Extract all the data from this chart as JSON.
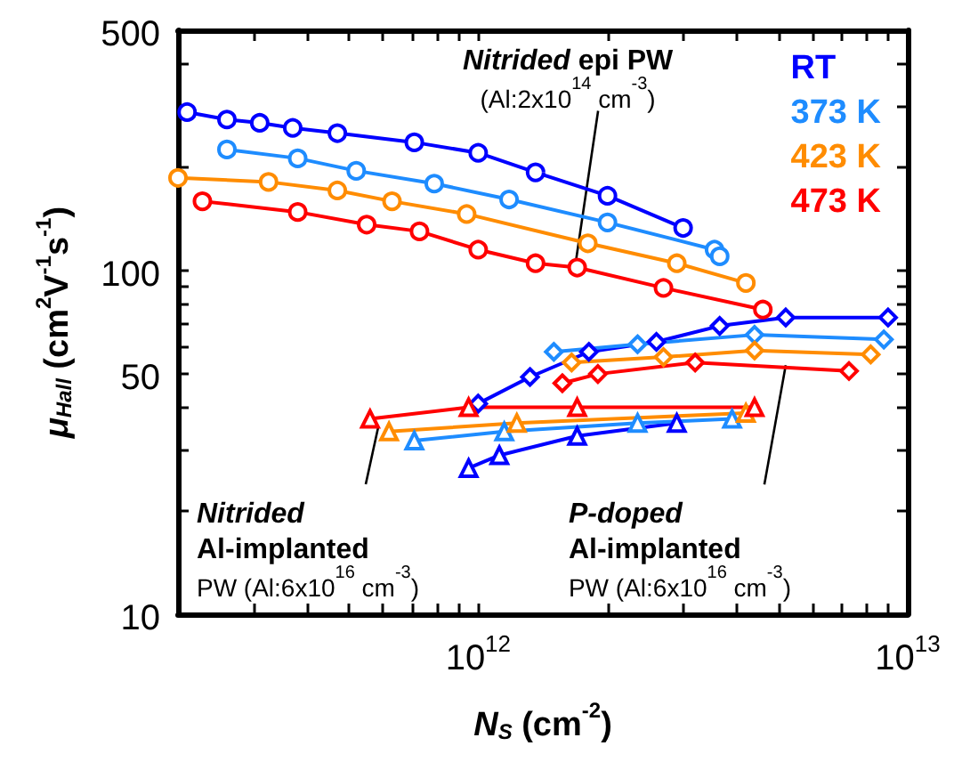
{
  "chart_data": {
    "type": "line",
    "xlabel": "N$_{S}$ (cm$^{-2}$)",
    "ylabel": "μ$_{Hall}$ (cm$^{2}$V$^{-1}$s$^{-1}$)",
    "log": "xy",
    "xlim": [
      200000000000.0,
      10000000000000.0
    ],
    "ylim": [
      10,
      500
    ],
    "xticks": [
      {
        "value": 200000000000.0,
        "label": null
      },
      {
        "value": 300000000000.0,
        "label": null
      },
      {
        "value": 400000000000.0,
        "label": null
      },
      {
        "value": 500000000000.0,
        "label": null
      },
      {
        "value": 600000000000.0,
        "label": null
      },
      {
        "value": 700000000000.0,
        "label": null
      },
      {
        "value": 800000000000.0,
        "label": null
      },
      {
        "value": 900000000000.0,
        "label": null
      },
      {
        "value": 1000000000000.0,
        "label": "10$^{12}$"
      },
      {
        "value": 2000000000000.0,
        "label": null
      },
      {
        "value": 3000000000000.0,
        "label": null
      },
      {
        "value": 4000000000000.0,
        "label": null
      },
      {
        "value": 5000000000000.0,
        "label": null
      },
      {
        "value": 6000000000000.0,
        "label": null
      },
      {
        "value": 7000000000000.0,
        "label": null
      },
      {
        "value": 8000000000000.0,
        "label": null
      },
      {
        "value": 9000000000000.0,
        "label": null
      },
      {
        "value": 10000000000000.0,
        "label": "10$^{13}$"
      }
    ],
    "yticks": [
      10,
      {
        "value": 20,
        "label": null
      },
      {
        "value": 30,
        "label": null
      },
      {
        "value": 40,
        "label": null
      },
      50,
      {
        "value": 60,
        "label": null
      },
      {
        "value": 70,
        "label": null
      },
      {
        "value": 80,
        "label": null
      },
      {
        "value": 90,
        "label": null
      },
      100,
      {
        "value": 200,
        "label": null
      },
      {
        "value": 300,
        "label": null
      },
      {
        "value": 400,
        "label": null
      },
      500
    ],
    "legend": "top right",
    "series": [
      {
        "name": "RT",
        "color": "#0000ff",
        "marker": "circle",
        "x": [
          210000000000.0,
          260000000000.0,
          310000000000.0,
          370000000000.0,
          470000000000.0,
          710000000000.0,
          1000000000000.0,
          1360000000000.0,
          2000000000000.0,
          3000000000000.0
        ],
        "values": [
          289,
          275,
          269,
          260,
          251,
          236,
          220,
          193,
          165,
          133
        ]
      },
      {
        "name": "373 K",
        "color": "#1e8cff",
        "marker": "circle",
        "x": [
          260000000000.0,
          380000000000.0,
          520000000000.0,
          790000000000.0,
          1180000000000.0,
          2000000000000.0,
          3550000000000.0,
          3650000000000.0
        ],
        "values": [
          225,
          212,
          195,
          179,
          161,
          138,
          115,
          110
        ]
      },
      {
        "name": "423 K",
        "color": "#ff8c00",
        "marker": "circle",
        "x": [
          200000000000.0,
          325000000000.0,
          470000000000.0,
          630000000000.0,
          940000000000.0,
          1800000000000.0,
          2900000000000.0,
          4200000000000.0
        ],
        "values": [
          186,
          181,
          171,
          159,
          146,
          120,
          105,
          92
        ]
      },
      {
        "name": "473 K",
        "color": "#ff0000",
        "marker": "circle",
        "x": [
          228000000000.0,
          380000000000.0,
          550000000000.0,
          730000000000.0,
          1000000000000.0,
          1360000000000.0,
          1700000000000.0,
          2700000000000.0,
          4600000000000.0
        ],
        "values": [
          159,
          148,
          136,
          130,
          115,
          105,
          102,
          89,
          77
        ]
      },
      {
        "color": "#0000ff",
        "marker": "diamond",
        "x": [
          1000000000000.0,
          1320000000000.0,
          1810000000000.0,
          2600000000000.0,
          3650000000000.0,
          5200000000000.0,
          9000000000000.0
        ],
        "values": [
          41,
          49,
          58,
          62,
          69,
          73,
          73
        ]
      },
      {
        "color": "#1e8cff",
        "marker": "diamond",
        "x": [
          1500000000000.0,
          2350000000000.0,
          4400000000000.0,
          8800000000000.0
        ],
        "values": [
          58,
          61,
          65,
          63
        ]
      },
      {
        "color": "#ff8c00",
        "marker": "diamond",
        "x": [
          1650000000000.0,
          2700000000000.0,
          4400000000000.0,
          8200000000000.0
        ],
        "values": [
          54,
          56,
          58.5,
          57
        ]
      },
      {
        "color": "#ff0000",
        "marker": "diamond",
        "x": [
          1570000000000.0,
          1900000000000.0,
          3200000000000.0,
          7300000000000.0
        ],
        "values": [
          47,
          50,
          54,
          51
        ]
      },
      {
        "color": "#0000ff",
        "marker": "triangle",
        "x": [
          950000000000.0,
          1120000000000.0,
          1700000000000.0,
          2900000000000.0
        ],
        "values": [
          26.6,
          29,
          33,
          36
        ]
      },
      {
        "color": "#1e8cff",
        "marker": "triangle",
        "x": [
          710000000000.0,
          1150000000000.0,
          2350000000000.0,
          3900000000000.0
        ],
        "values": [
          32,
          34,
          36,
          37
        ]
      },
      {
        "color": "#ff8c00",
        "marker": "triangle",
        "x": [
          620000000000.0,
          1230000000000.0,
          4200000000000.0
        ],
        "values": [
          34,
          36,
          38.5
        ]
      },
      {
        "color": "#ff0000",
        "marker": "triangle",
        "x": [
          560000000000.0,
          950000000000.0,
          1700000000000.0,
          4400000000000.0
        ],
        "values": [
          37,
          40,
          40,
          40
        ]
      }
    ],
    "annotations": [
      {
        "text": "Nitrided epi PW\n(Al:2x10$^{14}$ cm$^{-3}$)",
        "x": 1680000000000.0,
        "y": 102
      },
      {
        "text": "Nitrided\nAl-implanted\nPW (Al:6x10$^{16}$ cm$^{-3}$)",
        "x": 585000000000.0,
        "y": 35
      },
      {
        "text": "P-doped\nAl-implanted\nPW (Al:6x10$^{16}$ cm$^{-3}$)",
        "x": 5200000000000.0,
        "y": 53
      }
    ]
  }
}
